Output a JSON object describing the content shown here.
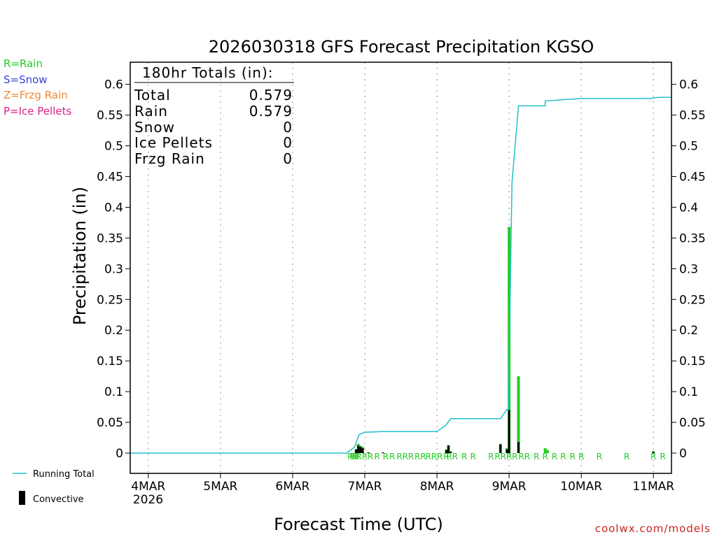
{
  "chart_data": {
    "type": "bar",
    "title": "2026030318 GFS Forecast Precipitation KGSO",
    "xlabel": "Forecast Time (UTC)",
    "ylabel": "Precipitation (in)",
    "ylim": [
      -0.033,
      0.636
    ],
    "xlim_days": [
      -0.25,
      7.25
    ],
    "yticks": [
      0,
      0.05,
      0.1,
      0.15,
      0.2,
      0.25,
      0.3,
      0.35,
      0.4,
      0.45,
      0.5,
      0.55,
      0.6
    ],
    "ytick_labels": [
      "0",
      "0.05",
      "0.1",
      "0.15",
      "0.2",
      "0.25",
      "0.3",
      "0.35",
      "0.4",
      "0.45",
      "0.5",
      "0.55",
      "0.6"
    ],
    "xticks": [
      {
        "day": 0,
        "label": "4MAR",
        "sublabel": "2026"
      },
      {
        "day": 1,
        "label": "5MAR"
      },
      {
        "day": 2,
        "label": "6MAR"
      },
      {
        "day": 3,
        "label": "7MAR"
      },
      {
        "day": 4,
        "label": "8MAR"
      },
      {
        "day": 5,
        "label": "9MAR"
      },
      {
        "day": 6,
        "label": "10MAR"
      },
      {
        "day": 7,
        "label": "11MAR"
      }
    ],
    "type_legend": [
      {
        "text": "R=Rain",
        "color": "#22cc22"
      },
      {
        "text": "S=Snow",
        "color": "#3344dd"
      },
      {
        "text": "Z=Frzg Rain",
        "color": "#ee8833"
      },
      {
        "text": "P=Ice Pellets",
        "color": "#dd2288"
      }
    ],
    "series_legend": [
      {
        "name": "Running Total",
        "color": "#22c0cc"
      },
      {
        "name": "Convective",
        "color": "#000000"
      }
    ],
    "totals": {
      "header": "180hr Totals (in):",
      "rows": [
        {
          "label": "Total",
          "value": "0.579"
        },
        {
          "label": "Rain",
          "value": "0.579"
        },
        {
          "label": "Snow",
          "value": "0"
        },
        {
          "label": "Ice Pellets",
          "value": "0"
        },
        {
          "label": "Frzg Rain",
          "value": "0"
        }
      ]
    },
    "precip_bars": [
      {
        "day": 2.88,
        "total": 0.006,
        "convective": 0.006
      },
      {
        "day": 2.91,
        "total": 0.015,
        "convective": 0.012
      },
      {
        "day": 2.94,
        "total": 0.012,
        "convective": 0.01
      },
      {
        "day": 2.97,
        "total": 0.01,
        "convective": 0.008
      },
      {
        "day": 3.05,
        "total": 0.001,
        "convective": 0.001
      },
      {
        "day": 3.25,
        "total": 0.001,
        "convective": 0.001
      },
      {
        "day": 4.13,
        "total": 0.006,
        "convective": 0.005
      },
      {
        "day": 4.16,
        "total": 0.013,
        "convective": 0.012
      },
      {
        "day": 4.19,
        "total": 0.003,
        "convective": 0.002
      },
      {
        "day": 4.88,
        "total": 0.015,
        "convective": 0.014
      },
      {
        "day": 4.97,
        "total": 0.008,
        "convective": 0.006
      },
      {
        "day": 5.0,
        "total": 0.368,
        "convective": 0.07
      },
      {
        "day": 5.13,
        "total": 0.125,
        "convective": 0.018
      },
      {
        "day": 5.5,
        "total": 0.008,
        "convective": 0.0
      },
      {
        "day": 5.53,
        "total": 0.005,
        "convective": 0.0
      },
      {
        "day": 7.0,
        "total": 0.003,
        "convective": 0.002
      }
    ],
    "running_total": {
      "name": "Running Total",
      "x": [
        -0.25,
        2.75,
        2.86,
        2.92,
        3.0,
        3.25,
        3.5,
        3.75,
        4.0,
        4.12,
        4.19,
        4.5,
        4.75,
        4.88,
        4.97,
        4.99,
        5.04,
        5.13,
        5.5,
        5.5,
        5.75,
        6.0,
        6.5,
        6.96,
        7.0,
        7.1,
        7.25
      ],
      "y": [
        0,
        0,
        0.01,
        0.03,
        0.034,
        0.035,
        0.035,
        0.035,
        0.035,
        0.045,
        0.056,
        0.056,
        0.056,
        0.056,
        0.071,
        0.071,
        0.44,
        0.565,
        0.565,
        0.573,
        0.575,
        0.577,
        0.577,
        0.577,
        0.578,
        0.579,
        0.579
      ]
    },
    "type_markers": {
      "label": "R",
      "days": [
        2.8,
        2.83,
        2.86,
        2.89,
        2.92,
        3.0,
        3.08,
        3.17,
        3.29,
        3.38,
        3.48,
        3.56,
        3.64,
        3.73,
        3.81,
        3.88,
        3.96,
        4.04,
        4.13,
        4.17,
        4.25,
        4.38,
        4.5,
        4.75,
        4.84,
        4.92,
        5.0,
        5.08,
        5.17,
        5.25,
        5.38,
        5.5,
        5.63,
        5.75,
        5.88,
        6.0,
        6.25,
        6.63,
        7.0,
        7.13
      ]
    }
  },
  "footer": {
    "site": "coolwx.com/models"
  }
}
